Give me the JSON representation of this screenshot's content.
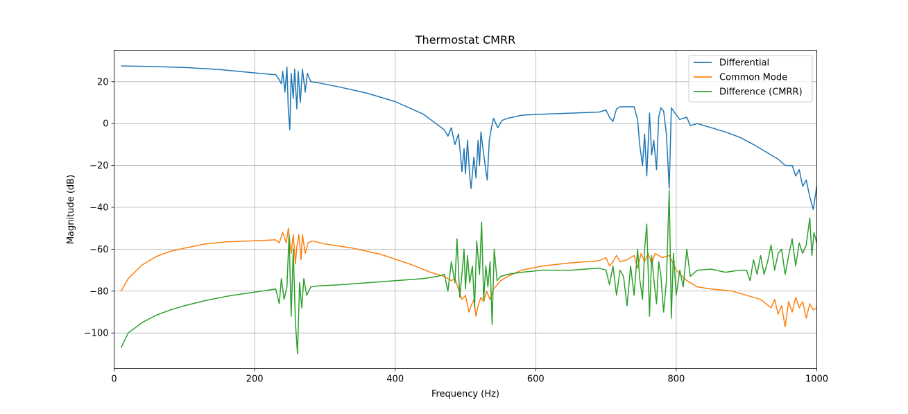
{
  "chart_data": {
    "type": "line",
    "title": "Thermostat CMRR",
    "xlabel": "Frequency (Hz)",
    "ylabel": "Magnitude (dB)",
    "xlim": [
      0,
      1000
    ],
    "ylim": [
      -117,
      35
    ],
    "xticks": [
      0,
      200,
      400,
      600,
      800,
      1000
    ],
    "yticks": [
      -100,
      -80,
      -60,
      -40,
      -20,
      0,
      20
    ],
    "grid": true,
    "legend_position": "top-right",
    "series": [
      {
        "name": "Differential",
        "color": "#1f77b4",
        "points": [
          [
            10,
            27.5
          ],
          [
            50,
            27.3
          ],
          [
            100,
            26.8
          ],
          [
            150,
            25.8
          ],
          [
            200,
            24.2
          ],
          [
            230,
            23.3
          ],
          [
            235,
            21
          ],
          [
            238,
            19
          ],
          [
            240,
            25
          ],
          [
            243,
            15
          ],
          [
            246,
            27
          ],
          [
            248,
            6
          ],
          [
            250,
            -3
          ],
          [
            252,
            24
          ],
          [
            255,
            12
          ],
          [
            257,
            26
          ],
          [
            260,
            7
          ],
          [
            262,
            25
          ],
          [
            265,
            10
          ],
          [
            268,
            26
          ],
          [
            272,
            15
          ],
          [
            275,
            24
          ],
          [
            280,
            20
          ],
          [
            290,
            19.5
          ],
          [
            320,
            17.5
          ],
          [
            360,
            14.5
          ],
          [
            400,
            10.5
          ],
          [
            440,
            4.5
          ],
          [
            460,
            -0.5
          ],
          [
            470,
            -3
          ],
          [
            475,
            -6
          ],
          [
            480,
            -2
          ],
          [
            485,
            -10
          ],
          [
            490,
            -5
          ],
          [
            493,
            -15
          ],
          [
            495,
            -23
          ],
          [
            498,
            -12
          ],
          [
            500,
            -24
          ],
          [
            503,
            -8
          ],
          [
            506,
            -25
          ],
          [
            508,
            -31
          ],
          [
            512,
            -16
          ],
          [
            515,
            -26
          ],
          [
            518,
            -8
          ],
          [
            520,
            -20
          ],
          [
            522,
            -4
          ],
          [
            525,
            -12
          ],
          [
            528,
            -20
          ],
          [
            531,
            -27
          ],
          [
            534,
            -8
          ],
          [
            537,
            -2
          ],
          [
            540,
            2.5
          ],
          [
            546,
            -2
          ],
          [
            552,
            1.5
          ],
          [
            560,
            2.5
          ],
          [
            580,
            4
          ],
          [
            610,
            4.5
          ],
          [
            650,
            5
          ],
          [
            690,
            5.5
          ],
          [
            700,
            6.5
          ],
          [
            705,
            3
          ],
          [
            710,
            1
          ],
          [
            715,
            7
          ],
          [
            720,
            8
          ],
          [
            740,
            8
          ],
          [
            745,
            2
          ],
          [
            748,
            -10
          ],
          [
            752,
            -20
          ],
          [
            755,
            -5
          ],
          [
            758,
            -25
          ],
          [
            762,
            5
          ],
          [
            765,
            -15
          ],
          [
            768,
            -8
          ],
          [
            772,
            -22
          ],
          [
            775,
            3
          ],
          [
            778,
            7.5
          ],
          [
            782,
            6
          ],
          [
            786,
            -5
          ],
          [
            790,
            -31
          ],
          [
            793,
            7.5
          ],
          [
            798,
            5
          ],
          [
            805,
            2
          ],
          [
            815,
            3
          ],
          [
            820,
            -1
          ],
          [
            830,
            0
          ],
          [
            850,
            -2
          ],
          [
            870,
            -4
          ],
          [
            890,
            -6.5
          ],
          [
            910,
            -10
          ],
          [
            930,
            -14
          ],
          [
            945,
            -17
          ],
          [
            955,
            -20
          ],
          [
            965,
            -20
          ],
          [
            970,
            -25
          ],
          [
            975,
            -22
          ],
          [
            980,
            -30
          ],
          [
            985,
            -27
          ],
          [
            990,
            -35
          ],
          [
            995,
            -41
          ],
          [
            1000,
            -30
          ]
        ]
      },
      {
        "name": "Common Mode",
        "color": "#ff7f0e",
        "points": [
          [
            10,
            -80
          ],
          [
            20,
            -74
          ],
          [
            40,
            -67.5
          ],
          [
            60,
            -63.5
          ],
          [
            80,
            -61
          ],
          [
            100,
            -59.5
          ],
          [
            130,
            -57.5
          ],
          [
            160,
            -56.5
          ],
          [
            200,
            -56
          ],
          [
            230,
            -55.5
          ],
          [
            235,
            -57
          ],
          [
            240,
            -52
          ],
          [
            245,
            -57
          ],
          [
            248,
            -50
          ],
          [
            252,
            -62
          ],
          [
            255,
            -53
          ],
          [
            258,
            -67
          ],
          [
            260,
            -59
          ],
          [
            263,
            -53
          ],
          [
            266,
            -65
          ],
          [
            268,
            -53
          ],
          [
            272,
            -62
          ],
          [
            276,
            -57
          ],
          [
            282,
            -56
          ],
          [
            300,
            -57.5
          ],
          [
            340,
            -59.5
          ],
          [
            380,
            -62.5
          ],
          [
            420,
            -67
          ],
          [
            450,
            -71
          ],
          [
            470,
            -73
          ],
          [
            480,
            -75
          ],
          [
            485,
            -74
          ],
          [
            490,
            -79
          ],
          [
            495,
            -84
          ],
          [
            500,
            -82
          ],
          [
            505,
            -90
          ],
          [
            508,
            -87
          ],
          [
            512,
            -84
          ],
          [
            515,
            -92
          ],
          [
            518,
            -87
          ],
          [
            522,
            -83
          ],
          [
            526,
            -85
          ],
          [
            530,
            -80
          ],
          [
            535,
            -84
          ],
          [
            540,
            -79
          ],
          [
            550,
            -75
          ],
          [
            560,
            -73
          ],
          [
            580,
            -70
          ],
          [
            610,
            -68
          ],
          [
            650,
            -66.5
          ],
          [
            690,
            -65.5
          ],
          [
            700,
            -64
          ],
          [
            705,
            -68
          ],
          [
            710,
            -66
          ],
          [
            715,
            -63
          ],
          [
            720,
            -66
          ],
          [
            730,
            -65
          ],
          [
            740,
            -63
          ],
          [
            745,
            -69
          ],
          [
            750,
            -62
          ],
          [
            755,
            -66
          ],
          [
            760,
            -62
          ],
          [
            765,
            -67
          ],
          [
            770,
            -62
          ],
          [
            780,
            -64
          ],
          [
            790,
            -63
          ],
          [
            800,
            -70
          ],
          [
            815,
            -75
          ],
          [
            830,
            -78
          ],
          [
            850,
            -79
          ],
          [
            880,
            -80
          ],
          [
            900,
            -82
          ],
          [
            920,
            -84
          ],
          [
            935,
            -88
          ],
          [
            940,
            -84
          ],
          [
            945,
            -91
          ],
          [
            950,
            -87
          ],
          [
            955,
            -97
          ],
          [
            960,
            -85
          ],
          [
            965,
            -90
          ],
          [
            970,
            -83
          ],
          [
            975,
            -88
          ],
          [
            980,
            -85
          ],
          [
            985,
            -93
          ],
          [
            990,
            -86
          ],
          [
            995,
            -89
          ],
          [
            1000,
            -88
          ]
        ]
      },
      {
        "name": "Difference (CMRR)",
        "color": "#2ca02c",
        "points": [
          [
            10,
            -107
          ],
          [
            20,
            -100
          ],
          [
            40,
            -95
          ],
          [
            60,
            -91.5
          ],
          [
            80,
            -89
          ],
          [
            100,
            -87
          ],
          [
            130,
            -84.5
          ],
          [
            160,
            -82.5
          ],
          [
            200,
            -80.5
          ],
          [
            230,
            -79
          ],
          [
            235,
            -86
          ],
          [
            238,
            -74
          ],
          [
            242,
            -84
          ],
          [
            246,
            -78
          ],
          [
            249,
            -53
          ],
          [
            252,
            -92
          ],
          [
            255,
            -60
          ],
          [
            258,
            -95
          ],
          [
            261,
            -110
          ],
          [
            264,
            -76
          ],
          [
            267,
            -88
          ],
          [
            270,
            -74
          ],
          [
            274,
            -82
          ],
          [
            280,
            -78
          ],
          [
            290,
            -77.5
          ],
          [
            320,
            -77
          ],
          [
            360,
            -76
          ],
          [
            400,
            -75
          ],
          [
            440,
            -74
          ],
          [
            460,
            -73
          ],
          [
            470,
            -72
          ],
          [
            475,
            -80
          ],
          [
            480,
            -66
          ],
          [
            485,
            -76
          ],
          [
            488,
            -55
          ],
          [
            492,
            -83
          ],
          [
            495,
            -72
          ],
          [
            498,
            -60
          ],
          [
            500,
            -79
          ],
          [
            503,
            -63
          ],
          [
            506,
            -76
          ],
          [
            510,
            -68
          ],
          [
            513,
            -88
          ],
          [
            516,
            -56
          ],
          [
            520,
            -72
          ],
          [
            523,
            -47
          ],
          [
            526,
            -84
          ],
          [
            529,
            -68
          ],
          [
            532,
            -78
          ],
          [
            535,
            -66
          ],
          [
            538,
            -96
          ],
          [
            541,
            -60
          ],
          [
            545,
            -75
          ],
          [
            550,
            -73
          ],
          [
            560,
            -72
          ],
          [
            580,
            -71
          ],
          [
            610,
            -70
          ],
          [
            650,
            -70
          ],
          [
            690,
            -69
          ],
          [
            700,
            -70
          ],
          [
            705,
            -77
          ],
          [
            710,
            -68
          ],
          [
            715,
            -82
          ],
          [
            720,
            -70
          ],
          [
            725,
            -73
          ],
          [
            730,
            -87
          ],
          [
            735,
            -68
          ],
          [
            740,
            -82
          ],
          [
            745,
            -60
          ],
          [
            748,
            -74
          ],
          [
            752,
            -84
          ],
          [
            755,
            -60
          ],
          [
            758,
            -48
          ],
          [
            762,
            -92
          ],
          [
            765,
            -63
          ],
          [
            768,
            -74
          ],
          [
            772,
            -86
          ],
          [
            775,
            -66
          ],
          [
            778,
            -72
          ],
          [
            782,
            -90
          ],
          [
            786,
            -75
          ],
          [
            790,
            -32
          ],
          [
            793,
            -93
          ],
          [
            796,
            -62
          ],
          [
            800,
            -82
          ],
          [
            805,
            -70
          ],
          [
            810,
            -78
          ],
          [
            815,
            -60
          ],
          [
            820,
            -73
          ],
          [
            830,
            -70
          ],
          [
            850,
            -69.5
          ],
          [
            870,
            -71
          ],
          [
            890,
            -70
          ],
          [
            900,
            -70
          ],
          [
            905,
            -75
          ],
          [
            910,
            -65
          ],
          [
            915,
            -72
          ],
          [
            920,
            -63
          ],
          [
            925,
            -72
          ],
          [
            930,
            -66
          ],
          [
            935,
            -58
          ],
          [
            940,
            -70
          ],
          [
            945,
            -62
          ],
          [
            950,
            -60
          ],
          [
            955,
            -72
          ],
          [
            960,
            -63
          ],
          [
            965,
            -55
          ],
          [
            970,
            -68
          ],
          [
            975,
            -57
          ],
          [
            980,
            -62
          ],
          [
            985,
            -58
          ],
          [
            990,
            -45
          ],
          [
            993,
            -63
          ],
          [
            996,
            -52
          ],
          [
            1000,
            -57
          ]
        ]
      }
    ]
  }
}
